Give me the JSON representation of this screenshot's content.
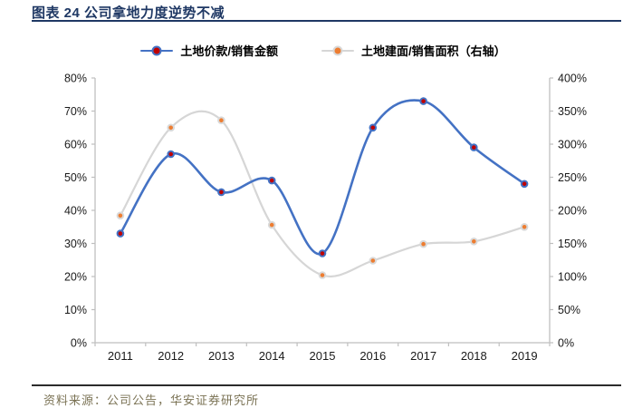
{
  "header": {
    "title": "图表 24 公司拿地力度逆势不减"
  },
  "footer": {
    "source": "资料来源：公司公告，华安证券研究所"
  },
  "colors": {
    "title_navy": "#1F3864",
    "axis": "#BFBFBF",
    "text": "#1A1A1A",
    "blue_line": "#4472C4",
    "red_marker": "#C00000",
    "gray_line": "#D6D6D6",
    "orange_marker": "#ED7D31",
    "source_olive": "#7B7355",
    "bottom_rule": "#2B2B2B"
  },
  "chart_data": {
    "type": "line",
    "title": "图表 24 公司拿地力度逆势不减",
    "x": [
      "2011",
      "2012",
      "2013",
      "2014",
      "2015",
      "2016",
      "2017",
      "2018",
      "2019"
    ],
    "series": [
      {
        "name": "土地价款/销售金额",
        "axis": "left",
        "unit": "%",
        "color": "#4472C4",
        "marker_color": "#C00000",
        "marker_border": "#4472C4",
        "values": [
          33,
          57,
          45.5,
          49,
          27,
          65,
          73,
          59,
          48
        ]
      },
      {
        "name": "土地建面/销售面积（右轴）",
        "axis": "right",
        "unit": "%",
        "color": "#D6D6D6",
        "marker_color": "#ED7D31",
        "marker_border": "#D9D9D9",
        "values": [
          192,
          325,
          336,
          178,
          102,
          124,
          149,
          153,
          175
        ]
      }
    ],
    "left_axis": {
      "min": 0,
      "max": 80,
      "step": 10,
      "tick_labels": [
        "0%",
        "10%",
        "20%",
        "30%",
        "40%",
        "50%",
        "60%",
        "70%",
        "80%"
      ]
    },
    "right_axis": {
      "min": 0,
      "max": 400,
      "step": 50,
      "tick_labels": [
        "0%",
        "50%",
        "100%",
        "150%",
        "200%",
        "250%",
        "300%",
        "350%",
        "400%"
      ]
    },
    "grid": false,
    "legend_position": "top",
    "smooth": true
  }
}
